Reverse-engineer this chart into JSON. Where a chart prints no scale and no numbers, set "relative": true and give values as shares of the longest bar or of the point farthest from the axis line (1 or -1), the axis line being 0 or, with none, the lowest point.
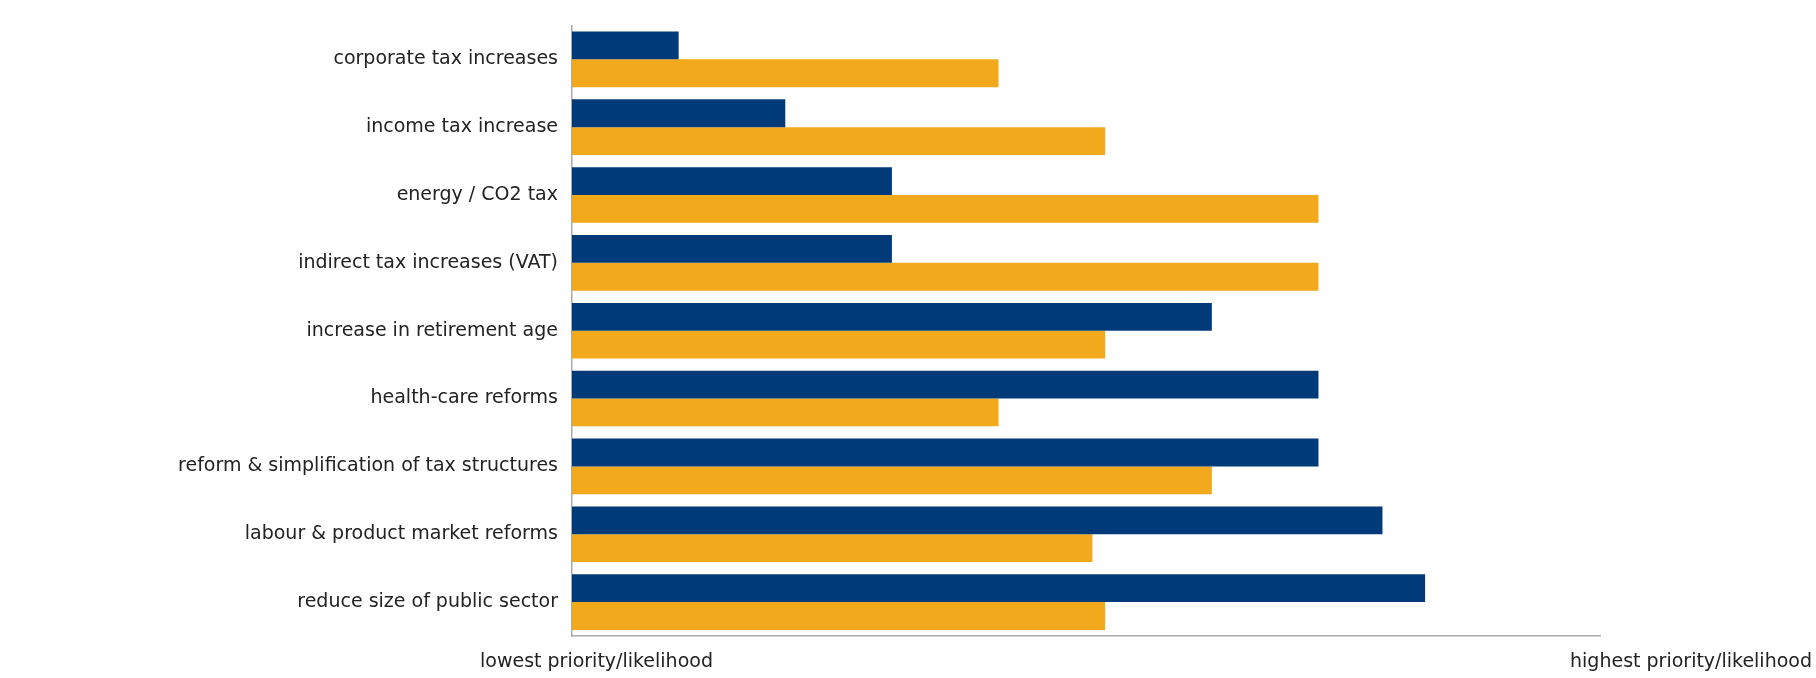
{
  "chart_data": {
    "type": "bar",
    "orientation": "horizontal",
    "relative": true,
    "grid": false,
    "legend": false,
    "categories": [
      "corporate tax increases",
      "income tax increase",
      "energy / CO2 tax",
      "indirect tax increases (VAT)",
      "increase in retirement age",
      "health-care reforms",
      "reform & simplification of tax structures",
      "labour & product market reforms",
      "reduce size of public sector"
    ],
    "series": [
      {
        "color": "#003a78",
        "values": [
          0.125,
          0.25,
          0.375,
          0.375,
          0.75,
          0.875,
          0.875,
          0.95,
          1
        ]
      },
      {
        "color": "#f2aa1c",
        "values": [
          0.5,
          0.625,
          0.875,
          0.875,
          0.625,
          0.5,
          0.75,
          0.61,
          0.625
        ]
      }
    ],
    "annotations": [
      "lowest priority/likelihood",
      "highest priority/likelihood"
    ]
  }
}
